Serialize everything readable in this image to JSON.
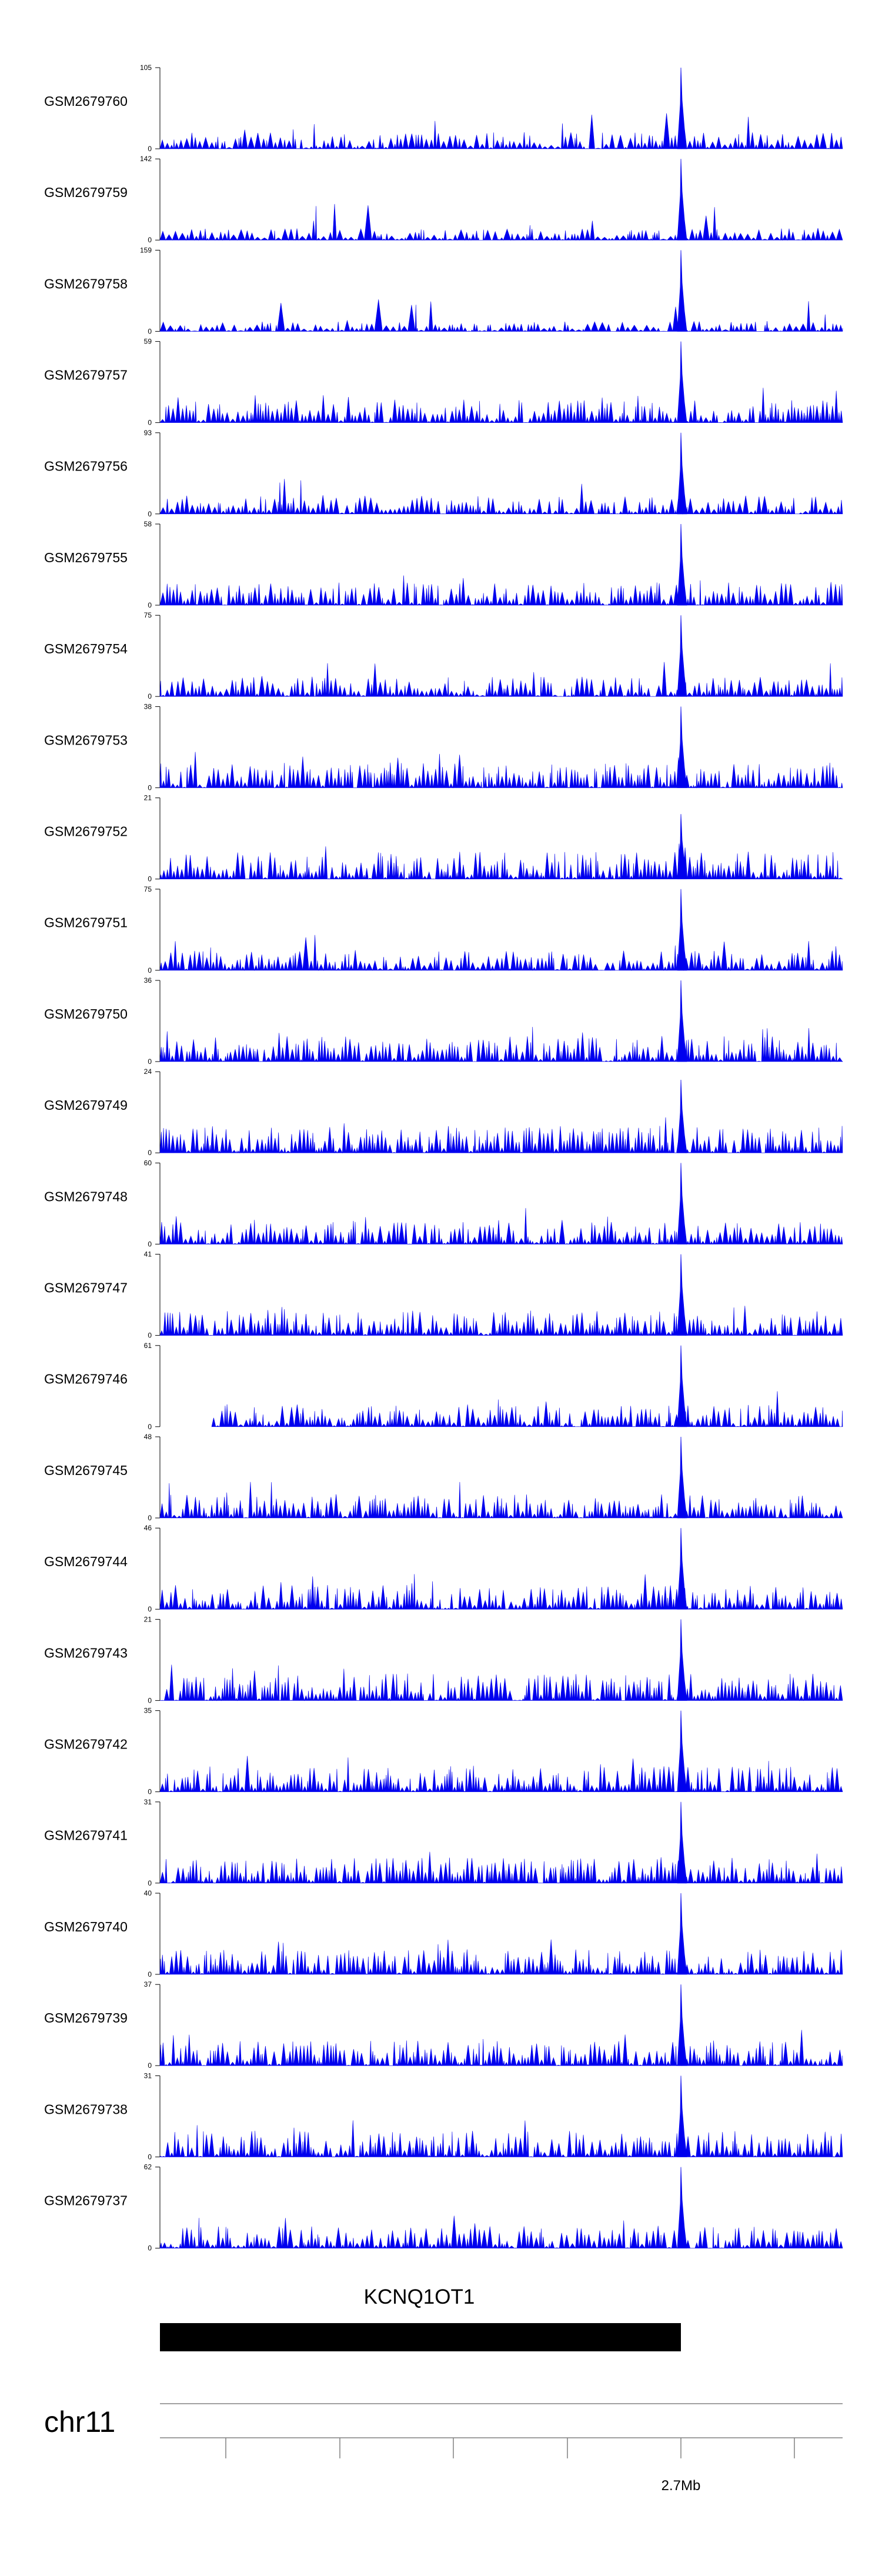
{
  "chart_data": {
    "type": "area",
    "title": "",
    "xlabel": "chr11",
    "x_tick_labels": [
      "",
      "",
      "",
      "",
      "2.7Mb",
      ""
    ],
    "tracks": [
      {
        "name": "GSM2679760",
        "ymax": 105,
        "ymin": 0,
        "peak": 1.0
      },
      {
        "name": "GSM2679759",
        "ymax": 142,
        "ymin": 0,
        "peak": 1.0
      },
      {
        "name": "GSM2679758",
        "ymax": 159,
        "ymin": 0,
        "peak": 1.0
      },
      {
        "name": "GSM2679757",
        "ymax": 59,
        "ymin": 0,
        "peak": 1.0
      },
      {
        "name": "GSM2679756",
        "ymax": 93,
        "ymin": 0,
        "peak": 1.0
      },
      {
        "name": "GSM2679755",
        "ymax": 58,
        "ymin": 0,
        "peak": 1.0
      },
      {
        "name": "GSM2679754",
        "ymax": 75,
        "ymin": 0,
        "peak": 1.0
      },
      {
        "name": "GSM2679753",
        "ymax": 38,
        "ymin": 0,
        "peak": 1.0
      },
      {
        "name": "GSM2679752",
        "ymax": 21,
        "ymin": 0,
        "peak": 0.8
      },
      {
        "name": "GSM2679751",
        "ymax": 75,
        "ymin": 0,
        "peak": 1.0
      },
      {
        "name": "GSM2679750",
        "ymax": 36,
        "ymin": 0,
        "peak": 1.0
      },
      {
        "name": "GSM2679749",
        "ymax": 24,
        "ymin": 0,
        "peak": 0.9
      },
      {
        "name": "GSM2679748",
        "ymax": 60,
        "ymin": 0,
        "peak": 1.0
      },
      {
        "name": "GSM2679747",
        "ymax": 41,
        "ymin": 0,
        "peak": 1.0
      },
      {
        "name": "GSM2679746",
        "ymax": 61,
        "ymin": 0,
        "peak": 1.0
      },
      {
        "name": "GSM2679745",
        "ymax": 48,
        "ymin": 0,
        "peak": 1.0
      },
      {
        "name": "GSM2679744",
        "ymax": 46,
        "ymin": 0,
        "peak": 1.0
      },
      {
        "name": "GSM2679743",
        "ymax": 21,
        "ymin": 0,
        "peak": 1.0
      },
      {
        "name": "GSM2679742",
        "ymax": 35,
        "ymin": 0,
        "peak": 1.0
      },
      {
        "name": "GSM2679741",
        "ymax": 31,
        "ymin": 0,
        "peak": 1.0
      },
      {
        "name": "GSM2679740",
        "ymax": 40,
        "ymin": 0,
        "peak": 1.0
      },
      {
        "name": "GSM2679739",
        "ymax": 37,
        "ymin": 0,
        "peak": 1.0
      },
      {
        "name": "GSM2679738",
        "ymax": 31,
        "ymin": 0,
        "peak": 1.0
      },
      {
        "name": "GSM2679737",
        "ymax": 62,
        "ymin": 0,
        "peak": 1.0
      }
    ],
    "gene": {
      "name": "KCNQ1OT1"
    }
  },
  "colors": {
    "signal": "#0000ee",
    "gene": "#000000",
    "axis": "#808080"
  }
}
